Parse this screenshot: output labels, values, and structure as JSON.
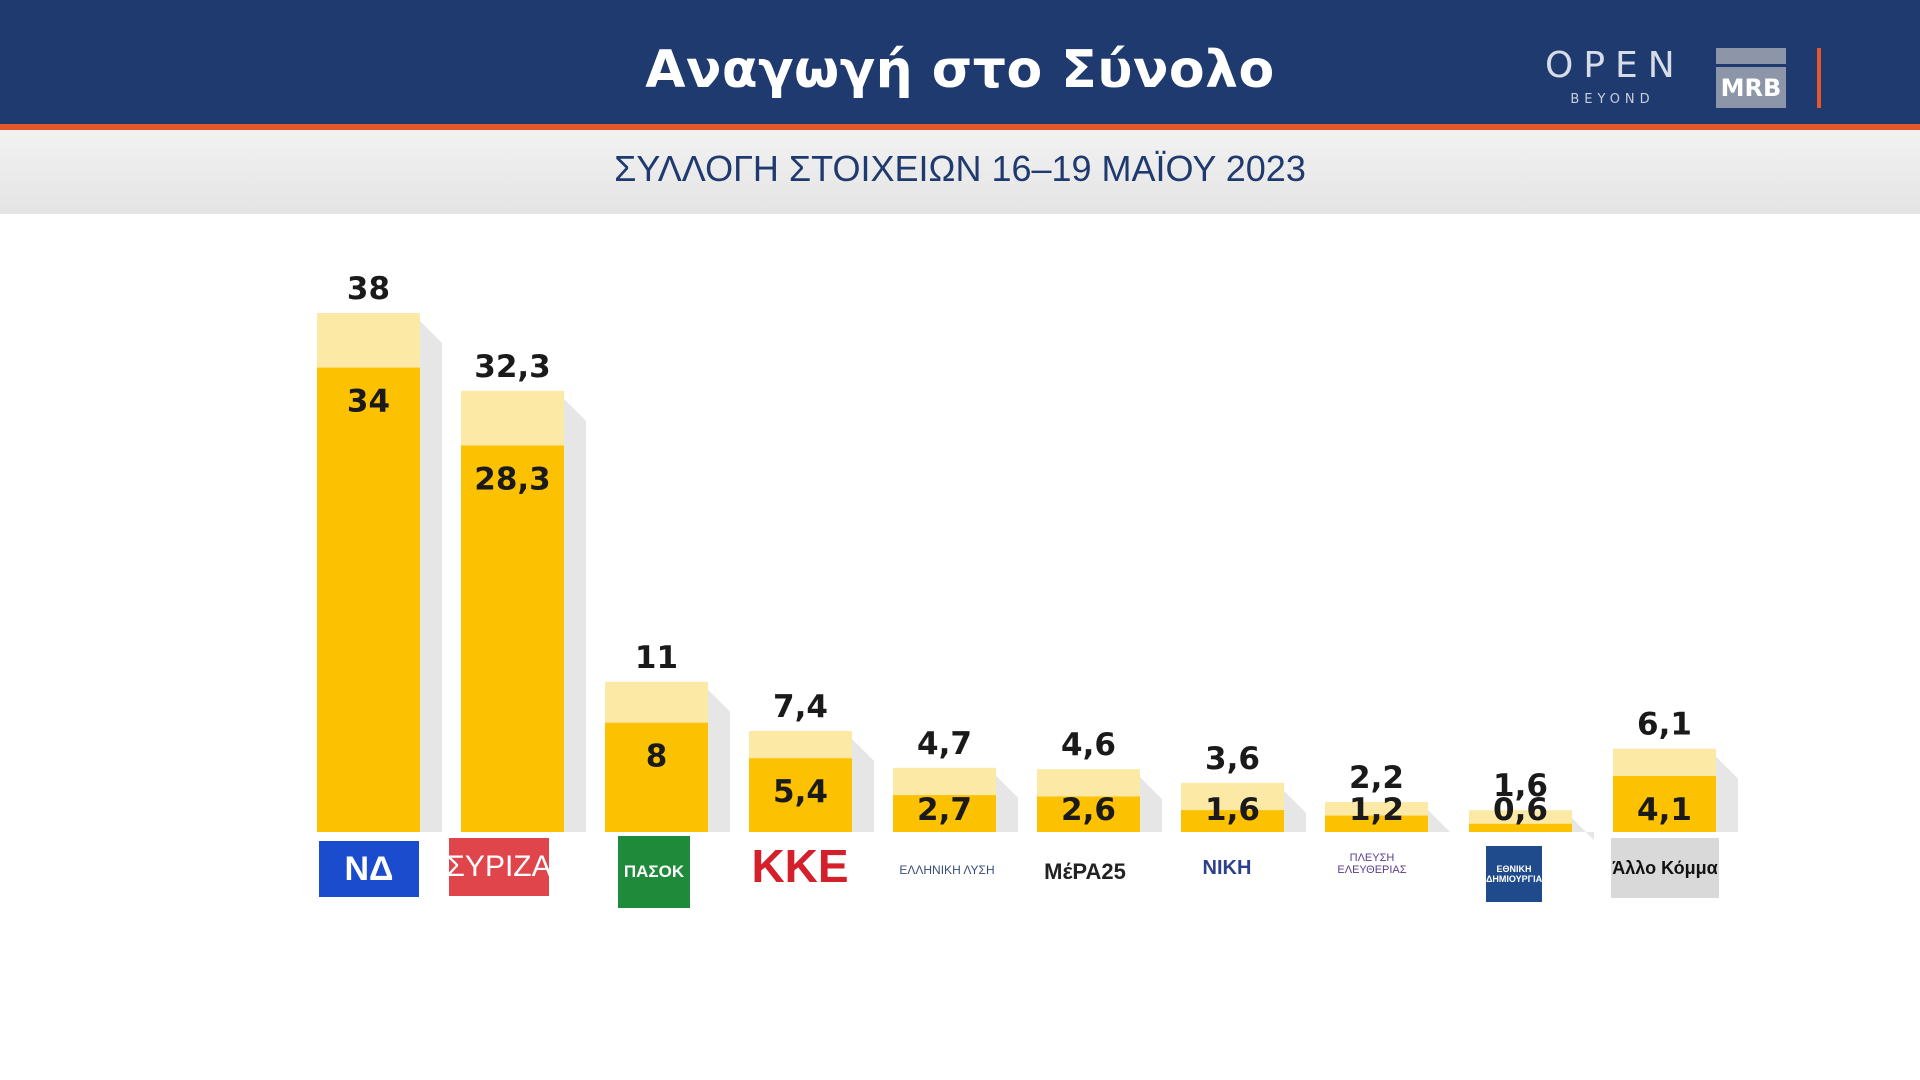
{
  "header": {
    "title": "Αναγωγή στο Σύνολο",
    "subtitle": "ΣΥΛΛΟΓΗ ΣΤΟΙΧΕΙΩΝ 16–19 ΜΑΪΟΥ 2023",
    "brand_open": "OPEN",
    "brand_beyond": "BEYOND",
    "brand_mrb": "MRB"
  },
  "colors": {
    "header_bg": "#1f3a6e",
    "accent_line": "#e5582b",
    "bar_inner": "#fcc100",
    "bar_outer": "#fde9a6"
  },
  "logos": {
    "nd": "ΝΔ",
    "syriza": "ΣΥΡΙΖΑ",
    "pasok": "ΠΑΣΟΚ",
    "kke": "ΚΚΕ",
    "ea": "ΕΛΛΗΝΙΚΗ ΛΥΣΗ",
    "mera": "ΜέΡΑ25",
    "niki": "ΝΙΚΗ",
    "pl": "ΠΛΕΥΣΗ ΕΛΕΥΘΕΡΙΑΣ",
    "ed": "ΕΘΝΙΚΗ ΔΗΜΙΟΥΡΓΙΑ",
    "allo": "Άλλο Κόμμα"
  },
  "chart_data": {
    "type": "bar",
    "categories": [
      "ΝΔ",
      "ΣΥΡΙΖΑ",
      "ΠΑΣΟΚ",
      "ΚΚΕ",
      "ΕΛΛΗΝΙΚΗ ΛΥΣΗ",
      "ΜέΡΑ25",
      "ΝΙΚΗ",
      "ΠΛΕΥΣΗ ΕΛΕΥΘΕΡΙΑΣ",
      "ΕΘΝΙΚΗ ΔΗΜΙΟΥΡΓΙΑ",
      "Άλλο Κόμμα"
    ],
    "series": [
      {
        "values": [
          38,
          32.3,
          11,
          7.4,
          4.7,
          4.6,
          3.6,
          2.2,
          1.6,
          6.1
        ],
        "labels": [
          "38",
          "32,3",
          "11",
          "7,4",
          "4,7",
          "4,6",
          "3,6",
          "2,2",
          "1,6",
          "6,1"
        ]
      },
      {
        "values": [
          34,
          28.3,
          8,
          5.4,
          2.7,
          2.6,
          1.6,
          1.2,
          0.6,
          4.1
        ],
        "labels": [
          "34",
          "28,3",
          "8",
          "5,4",
          "2,7",
          "2,6",
          "1,6",
          "1,2",
          "0,6",
          "4,1"
        ]
      }
    ],
    "title": "Αναγωγή στο Σύνολο",
    "subtitle": "ΣΥΛΛΟΓΗ ΣΤΟΙΧΕΙΩΝ 16–19 ΜΑΪΟΥ 2023",
    "ylim": [
      0,
      38
    ],
    "grid": false,
    "legend": "none"
  }
}
